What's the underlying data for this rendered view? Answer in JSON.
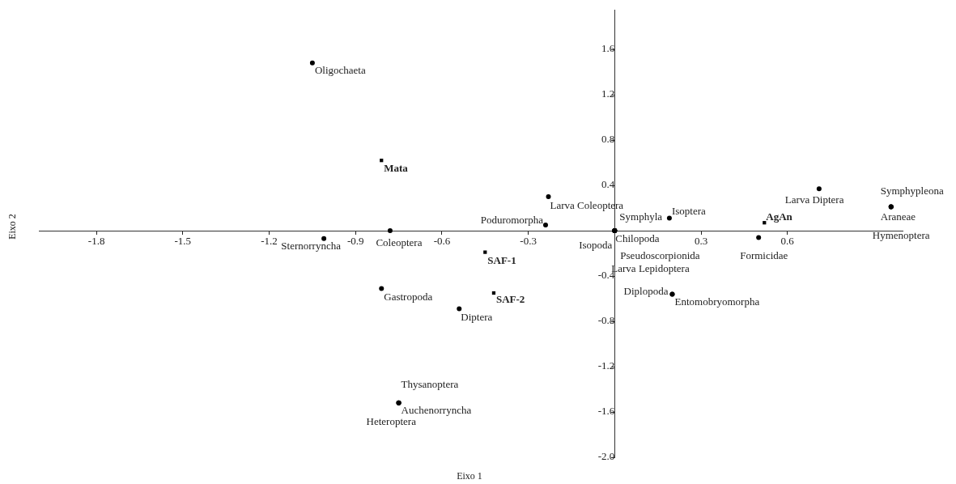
{
  "chart_data": {
    "type": "scatter",
    "xlabel": "Eixo 1",
    "ylabel": "Eixo 2",
    "xlim": [
      -2.0,
      1.0
    ],
    "ylim": [
      -2.0,
      1.95
    ],
    "xticks": [
      -1.8,
      -1.5,
      -1.2,
      -0.9,
      -0.6,
      -0.3,
      0.3,
      0.6
    ],
    "yticks": [
      1.6,
      1.2,
      0.8,
      0.4,
      -0.4,
      -0.8,
      -1.2,
      -1.6,
      {
        "value": -2.0,
        "label": "-2.0"
      }
    ],
    "grid": false,
    "legend": false,
    "series": [
      {
        "color": "#000000",
        "marker": "circle",
        "x": [
          -1.05,
          -0.23,
          -0.24,
          -0.78,
          -1.01,
          -0.81,
          -0.54,
          -0.75,
          -0.75,
          -0.75,
          0,
          0.19,
          0,
          0,
          0,
          0,
          0.2,
          0.2,
          0.5,
          0.71,
          0.96,
          0.96,
          0.96
        ],
        "values": [
          1.48,
          0.3,
          0.05,
          0,
          -0.07,
          -0.51,
          -0.69,
          -1.52,
          -1.52,
          -1.52,
          0,
          0.11,
          0,
          0,
          0,
          0,
          -0.56,
          -0.56,
          -0.06,
          0.37,
          0.21,
          0.21,
          0.21
        ],
        "value_labels": [
          "Oligochaeta",
          "Larva Coleoptera",
          "Poduromorpha",
          "Coleoptera",
          "Sternorryncha",
          "Gastropoda",
          "Diptera",
          "Thysanoptera",
          "Auchenorryncha",
          "Heteroptera",
          "Symphyla",
          "Isoptera",
          "Chilopoda",
          "Isopoda",
          "Pseudoscorpionida",
          "Larva Lepidoptera",
          "Diplopoda",
          "Entomobryomorpha",
          "Formicidae",
          "Larva Diptera",
          "Symphypleona",
          "Araneae",
          "Hymenoptera"
        ]
      },
      {
        "color": "#000000",
        "marker": "square",
        "x": [
          -0.81,
          -0.45,
          -0.42,
          0.52
        ],
        "values": [
          0.62,
          -0.19,
          -0.55,
          0.07
        ],
        "value_labels": [
          "Mata",
          "SAF-1",
          "SAF-2",
          "AgAn"
        ]
      }
    ]
  }
}
